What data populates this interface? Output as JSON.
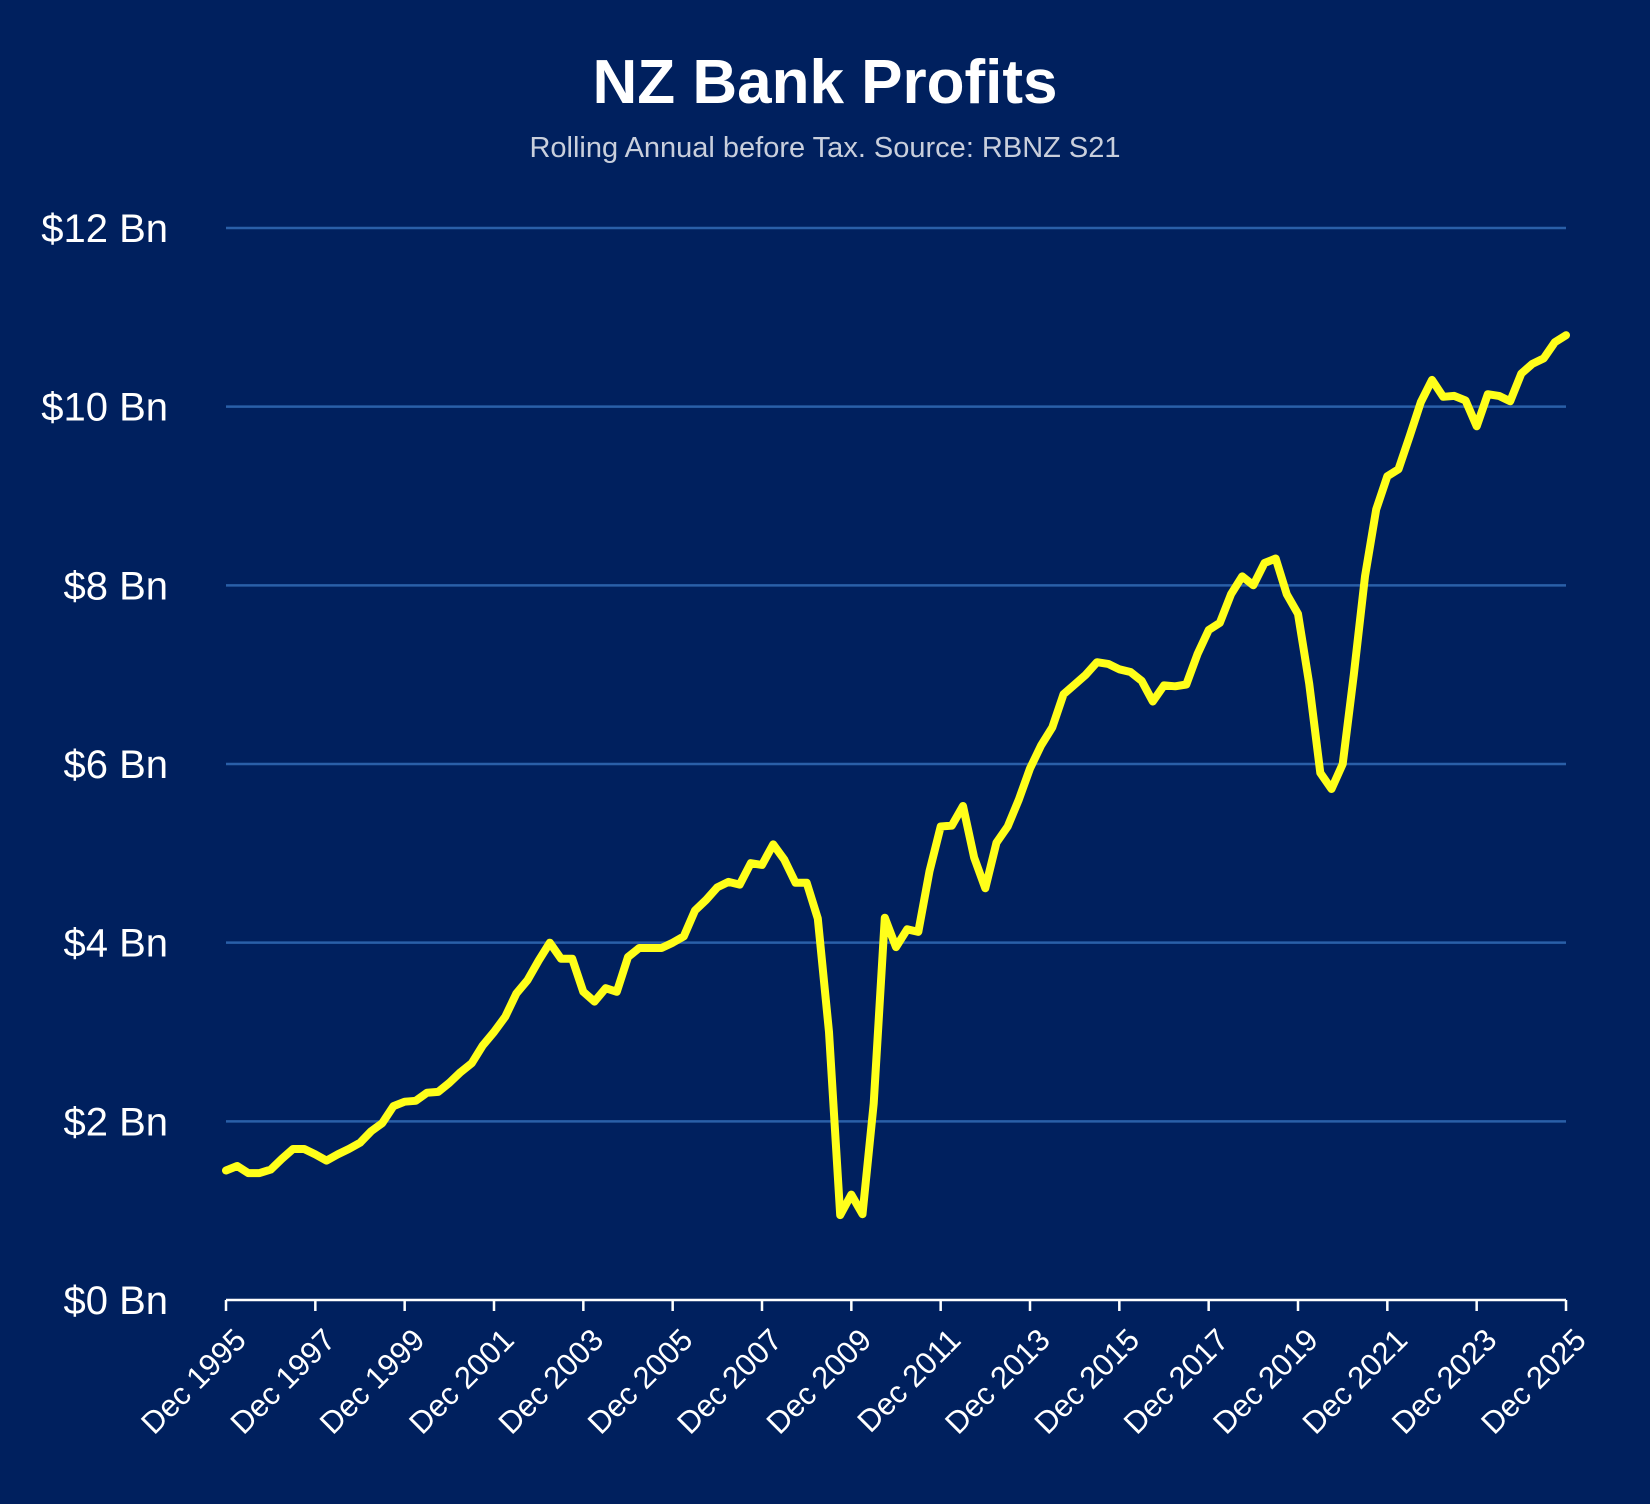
{
  "chart_data": {
    "type": "line",
    "title": "NZ Bank Profits",
    "subtitle": "Rolling Annual before Tax. Source: RBNZ S21",
    "xlabel": "",
    "ylabel": "",
    "y_unit": "$ Bn",
    "ylim": [
      0,
      12
    ],
    "y_ticks": [
      0,
      2,
      4,
      6,
      8,
      10,
      12
    ],
    "y_tick_labels": [
      "$0 Bn",
      "$2 Bn",
      "$4 Bn",
      "$6 Bn",
      "$8 Bn",
      "$10 Bn",
      "$12 Bn"
    ],
    "xlim": [
      1995.92,
      2025.92
    ],
    "x_ticks": [
      1995.92,
      1997.92,
      1999.92,
      2001.92,
      2003.92,
      2005.92,
      2007.92,
      2009.92,
      2011.92,
      2013.92,
      2015.92,
      2017.92,
      2019.92,
      2021.92,
      2023.92,
      2025.92
    ],
    "x_tick_labels": [
      "Dec 1995",
      "Dec 1997",
      "Dec 1999",
      "Dec 2001",
      "Dec 2003",
      "Dec 2005",
      "Dec 2007",
      "Dec 2009",
      "Dec 2011",
      "Dec 2013",
      "Dec 2015",
      "Dec 2017",
      "Dec 2019",
      "Dec 2021",
      "Dec 2023",
      "Dec 2025"
    ],
    "grid": "horizontal",
    "colors": {
      "background": "#00205e",
      "line": "#ffff1a",
      "grid": "#2a5fa8",
      "axis": "#ffffff"
    },
    "series": [
      {
        "x": [
          1995.92,
          1996.17,
          1996.42,
          1996.67,
          1996.92,
          1997.17,
          1997.42,
          1997.67,
          1997.92,
          1998.17,
          1998.42,
          1998.67,
          1998.92,
          1999.17,
          1999.42,
          1999.67,
          1999.92,
          2000.17,
          2000.42,
          2000.67,
          2000.92,
          2001.17,
          2001.42,
          2001.67,
          2001.92,
          2002.17,
          2002.42,
          2002.67,
          2002.92,
          2003.17,
          2003.42,
          2003.67,
          2003.92,
          2004.17,
          2004.42,
          2004.67,
          2004.92,
          2005.17,
          2005.42,
          2005.67,
          2005.92,
          2006.17,
          2006.42,
          2006.67,
          2006.92,
          2007.17,
          2007.42,
          2007.67,
          2007.92,
          2008.17,
          2008.42,
          2008.67,
          2008.92,
          2009.17,
          2009.42,
          2009.67,
          2009.92,
          2010.17,
          2010.42,
          2010.67,
          2010.92,
          2011.17,
          2011.42,
          2011.67,
          2011.92,
          2012.17,
          2012.42,
          2012.67,
          2012.92,
          2013.17,
          2013.42,
          2013.67,
          2013.92,
          2014.17,
          2014.42,
          2014.67,
          2014.92,
          2015.17,
          2015.42,
          2015.67,
          2015.92,
          2016.17,
          2016.42,
          2016.67,
          2016.92,
          2017.17,
          2017.42,
          2017.67,
          2017.92,
          2018.17,
          2018.42,
          2018.67,
          2018.92,
          2019.17,
          2019.42,
          2019.67,
          2019.92,
          2020.17,
          2020.42,
          2020.67,
          2020.92,
          2021.17,
          2021.42,
          2021.67,
          2021.92,
          2022.17,
          2022.42,
          2022.67,
          2022.92,
          2023.17,
          2023.42,
          2023.67,
          2023.92,
          2024.17,
          2024.42,
          2024.67,
          2024.92,
          2025.17,
          2025.42,
          2025.67,
          2025.92
        ],
        "values": [
          1.45,
          1.5,
          1.42,
          1.42,
          1.46,
          1.58,
          1.69,
          1.69,
          1.63,
          1.56,
          1.63,
          1.69,
          1.76,
          1.89,
          1.98,
          2.17,
          2.22,
          2.23,
          2.32,
          2.33,
          2.43,
          2.55,
          2.65,
          2.85,
          3.0,
          3.17,
          3.43,
          3.58,
          3.8,
          4.0,
          3.82,
          3.82,
          3.45,
          3.34,
          3.49,
          3.45,
          3.84,
          3.94,
          3.94,
          3.94,
          4.0,
          4.07,
          4.36,
          4.48,
          4.62,
          4.68,
          4.65,
          4.89,
          4.87,
          5.1,
          4.93,
          4.67,
          4.67,
          4.27,
          3.0,
          0.95,
          1.18,
          0.96,
          2.2,
          4.28,
          3.95,
          4.15,
          4.12,
          4.8,
          5.3,
          5.31,
          5.53,
          4.95,
          4.61,
          5.12,
          5.3,
          5.6,
          5.95,
          6.21,
          6.41,
          6.78,
          6.89,
          7.0,
          7.14,
          7.12,
          7.06,
          7.03,
          6.93,
          6.7,
          6.88,
          6.87,
          6.89,
          7.23,
          7.5,
          7.58,
          7.9,
          8.1,
          8.0,
          8.25,
          8.3,
          7.9,
          7.68,
          6.9,
          5.9,
          5.72,
          6.0,
          7.0,
          8.1,
          8.85,
          9.22,
          9.3,
          9.67,
          10.05,
          10.3,
          10.11,
          10.12,
          10.07,
          9.78,
          10.14,
          10.12,
          10.06,
          10.37,
          10.48,
          10.54,
          10.72,
          10.8
        ]
      }
    ]
  }
}
